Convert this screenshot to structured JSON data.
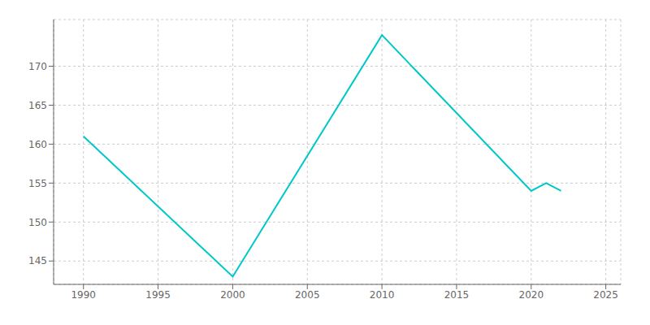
{
  "chart_data": {
    "type": "line",
    "x": [
      1990,
      2000,
      2010,
      2020,
      2021,
      2022
    ],
    "values": [
      161,
      143,
      174,
      154,
      155,
      154
    ],
    "color": "#00C8C8",
    "xlim": [
      1988,
      2026
    ],
    "ylim": [
      142,
      176
    ],
    "xticks": [
      1990,
      1995,
      2000,
      2005,
      2010,
      2015,
      2020,
      2025
    ],
    "yticks": [
      145,
      150,
      155,
      160,
      165,
      170
    ],
    "grid": true
  }
}
